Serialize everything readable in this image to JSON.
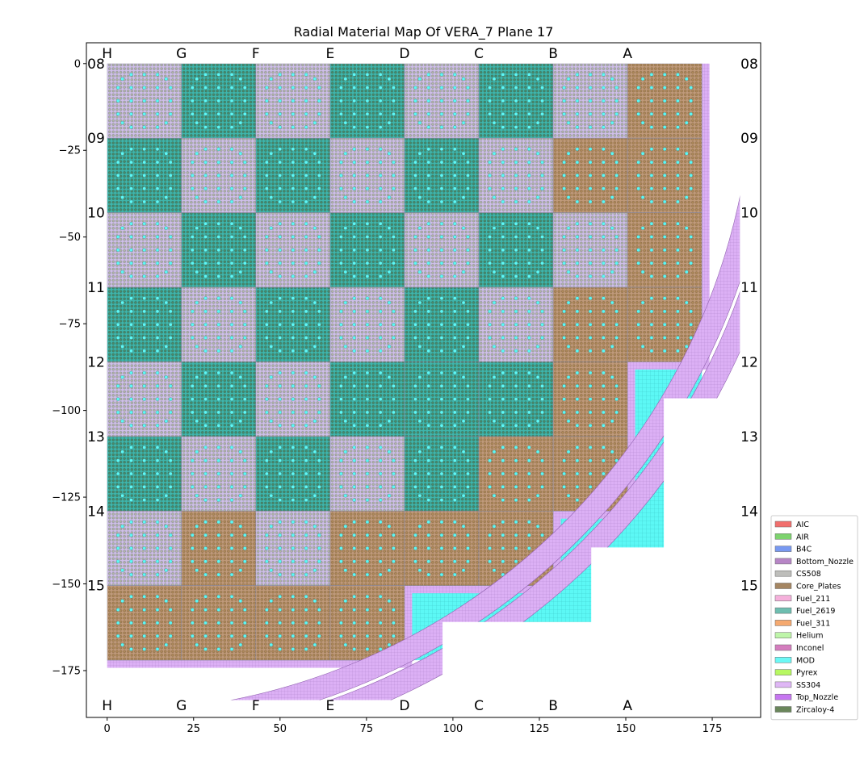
{
  "chart_data": {
    "type": "heatmap",
    "title": "Radial Material Map Of VERA_7 Plane 17",
    "xlabel": "",
    "ylabel": "",
    "xlim": [
      -6,
      189
    ],
    "ylim": [
      -188.5,
      6
    ],
    "x_ticks": [
      0,
      25,
      50,
      75,
      100,
      125,
      150,
      175
    ],
    "y_ticks": [
      0,
      -25,
      -50,
      -75,
      -100,
      -125,
      -150,
      -175
    ],
    "assembly_pitch": 21.5,
    "column_labels": [
      "H",
      "G",
      "F",
      "E",
      "D",
      "C",
      "B",
      "A"
    ],
    "row_labels": [
      "08",
      "09",
      "10",
      "11",
      "12",
      "13",
      "14",
      "15"
    ],
    "assemblies": [
      [
        "Fuel_211",
        "Fuel_2619",
        "Fuel_211",
        "Fuel_2619",
        "Fuel_211",
        "Fuel_2619",
        "Fuel_211",
        "Fuel_311"
      ],
      [
        "Fuel_2619",
        "Fuel_211",
        "Fuel_2619",
        "Fuel_211",
        "Fuel_2619",
        "Fuel_211",
        "Fuel_311",
        "Fuel_311"
      ],
      [
        "Fuel_211",
        "Fuel_2619",
        "Fuel_211",
        "Fuel_2619",
        "Fuel_211",
        "Fuel_2619",
        "Fuel_211",
        "Fuel_311"
      ],
      [
        "Fuel_2619",
        "Fuel_211",
        "Fuel_2619",
        "Fuel_211",
        "Fuel_2619",
        "Fuel_211",
        "Fuel_311",
        "Fuel_311"
      ],
      [
        "Fuel_211",
        "Fuel_2619",
        "Fuel_211",
        "Fuel_2619",
        "Fuel_2619",
        "Fuel_2619",
        "Fuel_311",
        null
      ],
      [
        "Fuel_2619",
        "Fuel_211",
        "Fuel_2619",
        "Fuel_211",
        "Fuel_2619",
        "Fuel_311",
        "Fuel_311",
        null
      ],
      [
        "Fuel_211",
        "Fuel_311",
        "Fuel_211",
        "Fuel_311",
        "Fuel_311",
        "Fuel_311",
        null,
        null
      ],
      [
        "Fuel_311",
        "Fuel_311",
        "Fuel_311",
        "Fuel_311",
        null,
        null,
        null,
        null
      ]
    ],
    "legend": {
      "placement": "lower-right outside",
      "entries": [
        {
          "name": "AIC",
          "color": "#f0605e"
        },
        {
          "name": "AIR",
          "color": "#6fcf5f"
        },
        {
          "name": "B4C",
          "color": "#6a8ef0"
        },
        {
          "name": "Bottom_Nozzle",
          "color": "#b07ac0"
        },
        {
          "name": "CS508",
          "color": "#b8b8b4"
        },
        {
          "name": "Core_Plates",
          "color": "#9c7a52"
        },
        {
          "name": "Fuel_211",
          "color": "#f5a8d8"
        },
        {
          "name": "Fuel_2619",
          "color": "#5fb8a8"
        },
        {
          "name": "Fuel_311",
          "color": "#f5a060"
        },
        {
          "name": "Helium",
          "color": "#b8f5a0"
        },
        {
          "name": "Inconel",
          "color": "#d070b8"
        },
        {
          "name": "MOD",
          "color": "#5cf8f5"
        },
        {
          "name": "Pyrex",
          "color": "#b0f850"
        },
        {
          "name": "SS304",
          "color": "#dcb0f5"
        },
        {
          "name": "Top_Nozzle",
          "color": "#c068f0"
        },
        {
          "name": "Zircaloy-4",
          "color": "#5a7a4a"
        }
      ]
    },
    "grid": false
  }
}
